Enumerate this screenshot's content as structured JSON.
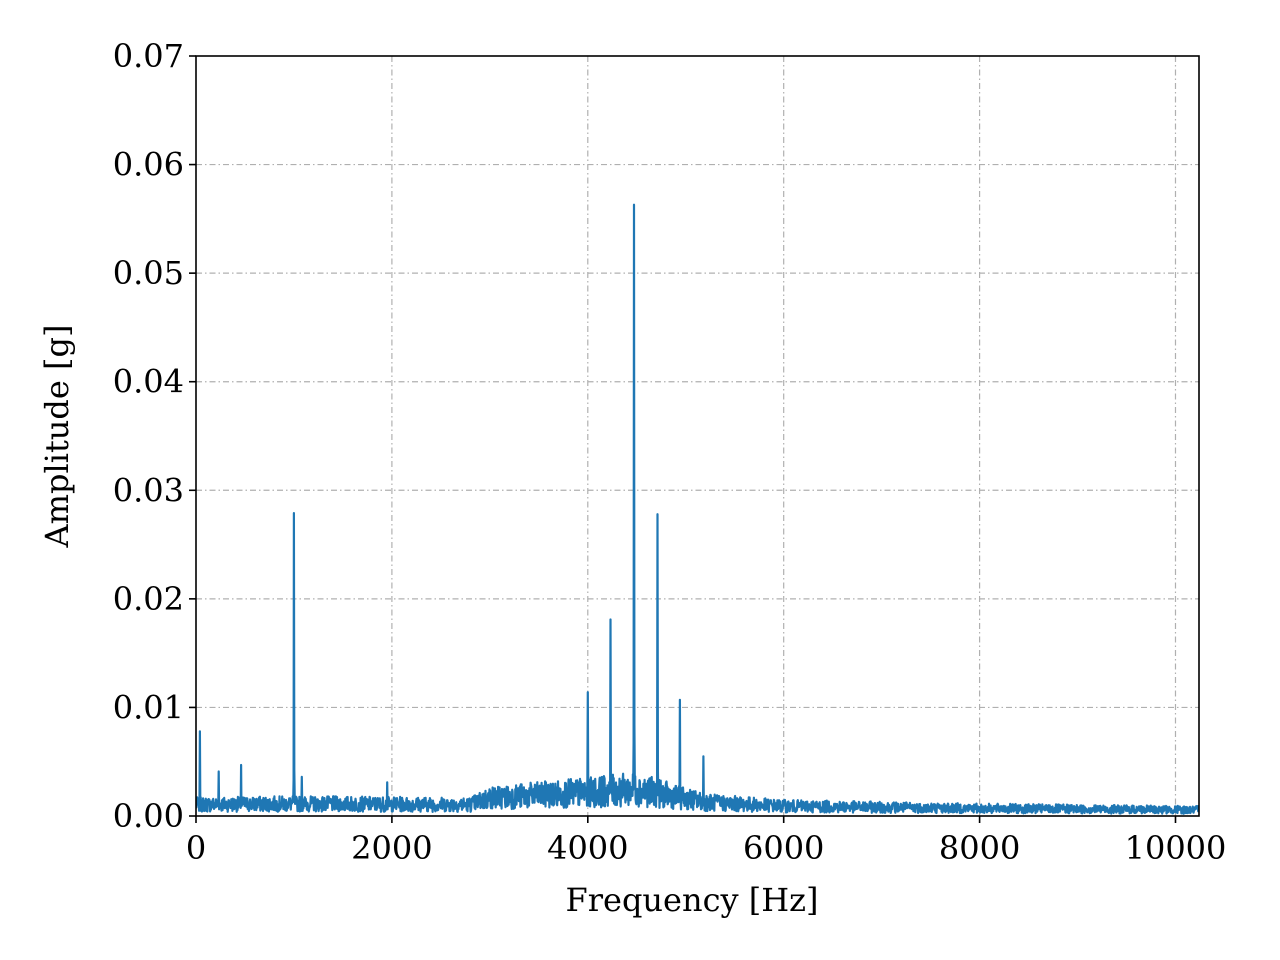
{
  "chart_data": {
    "type": "line",
    "title": "",
    "xlabel": "Frequency [Hz]",
    "ylabel": "Amplitude [g]",
    "xlim": [
      0,
      10240
    ],
    "ylim": [
      0,
      0.07
    ],
    "x_ticks": [
      0,
      2000,
      4000,
      6000,
      8000,
      10000
    ],
    "x_tick_labels": [
      "0",
      "2000",
      "4000",
      "6000",
      "8000",
      "10000"
    ],
    "y_ticks": [
      0,
      0.01,
      0.02,
      0.03,
      0.04,
      0.05,
      0.06,
      0.07
    ],
    "y_tick_labels": [
      "0.00",
      "0.01",
      "0.02",
      "0.03",
      "0.04",
      "0.05",
      "0.06",
      "0.07"
    ],
    "grid": true,
    "series_color": "#1f77b4",
    "peaks": [
      {
        "x": 40,
        "y": 0.0078
      },
      {
        "x": 230,
        "y": 0.0041
      },
      {
        "x": 460,
        "y": 0.0047
      },
      {
        "x": 1000,
        "y": 0.0279
      },
      {
        "x": 1080,
        "y": 0.0036
      },
      {
        "x": 1950,
        "y": 0.0031
      },
      {
        "x": 4000,
        "y": 0.0114
      },
      {
        "x": 4230,
        "y": 0.0181
      },
      {
        "x": 4470,
        "y": 0.0563
      },
      {
        "x": 4710,
        "y": 0.0278
      },
      {
        "x": 4940,
        "y": 0.0107
      },
      {
        "x": 5180,
        "y": 0.0055
      }
    ],
    "noise_floor": [
      {
        "x": 0,
        "y": 0.0015
      },
      {
        "x": 1000,
        "y": 0.0016
      },
      {
        "x": 2800,
        "y": 0.0015
      },
      {
        "x": 3000,
        "y": 0.0024
      },
      {
        "x": 3600,
        "y": 0.0028
      },
      {
        "x": 4500,
        "y": 0.0035
      },
      {
        "x": 5200,
        "y": 0.0018
      },
      {
        "x": 6000,
        "y": 0.0013
      },
      {
        "x": 8000,
        "y": 0.001
      },
      {
        "x": 10240,
        "y": 0.0008
      }
    ]
  }
}
